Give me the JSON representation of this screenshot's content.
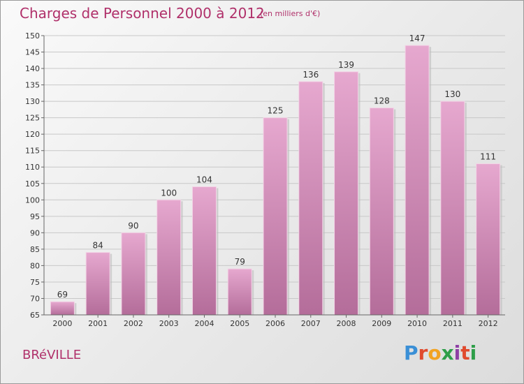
{
  "header": {
    "title": "Charges de Personnel 2000 à 2012",
    "subtitle": "(en milliers d'€)"
  },
  "footer": {
    "commune": "BRéVILLE",
    "brand_letters": [
      "P",
      "r",
      "o",
      "x",
      "i",
      "t",
      "i"
    ],
    "brand_colors": [
      "#3a8fd6",
      "#e04a2e",
      "#f2a321",
      "#2e9e49",
      "#8e3fa5",
      "#e04a2e",
      "#2e9e49"
    ]
  },
  "colors": {
    "bar_top": "#e6a8cf",
    "bar_bottom": "#b46d9a",
    "text": "#333333",
    "accent": "#b0306a"
  },
  "chart_data": {
    "type": "bar",
    "title": "Charges de Personnel 2000 à 2012",
    "subtitle": "(en milliers d'€)",
    "categories": [
      "2000",
      "2001",
      "2002",
      "2003",
      "2004",
      "2005",
      "2006",
      "2007",
      "2008",
      "2009",
      "2010",
      "2011",
      "2012"
    ],
    "values": [
      69,
      84,
      90,
      100,
      104,
      79,
      125,
      136,
      139,
      128,
      147,
      130,
      111
    ],
    "ylim": [
      65,
      150
    ],
    "yticks": [
      65,
      70,
      75,
      80,
      85,
      90,
      95,
      100,
      105,
      110,
      115,
      120,
      125,
      130,
      135,
      140,
      145,
      150
    ],
    "grid": true,
    "xlabel": "",
    "ylabel": ""
  }
}
